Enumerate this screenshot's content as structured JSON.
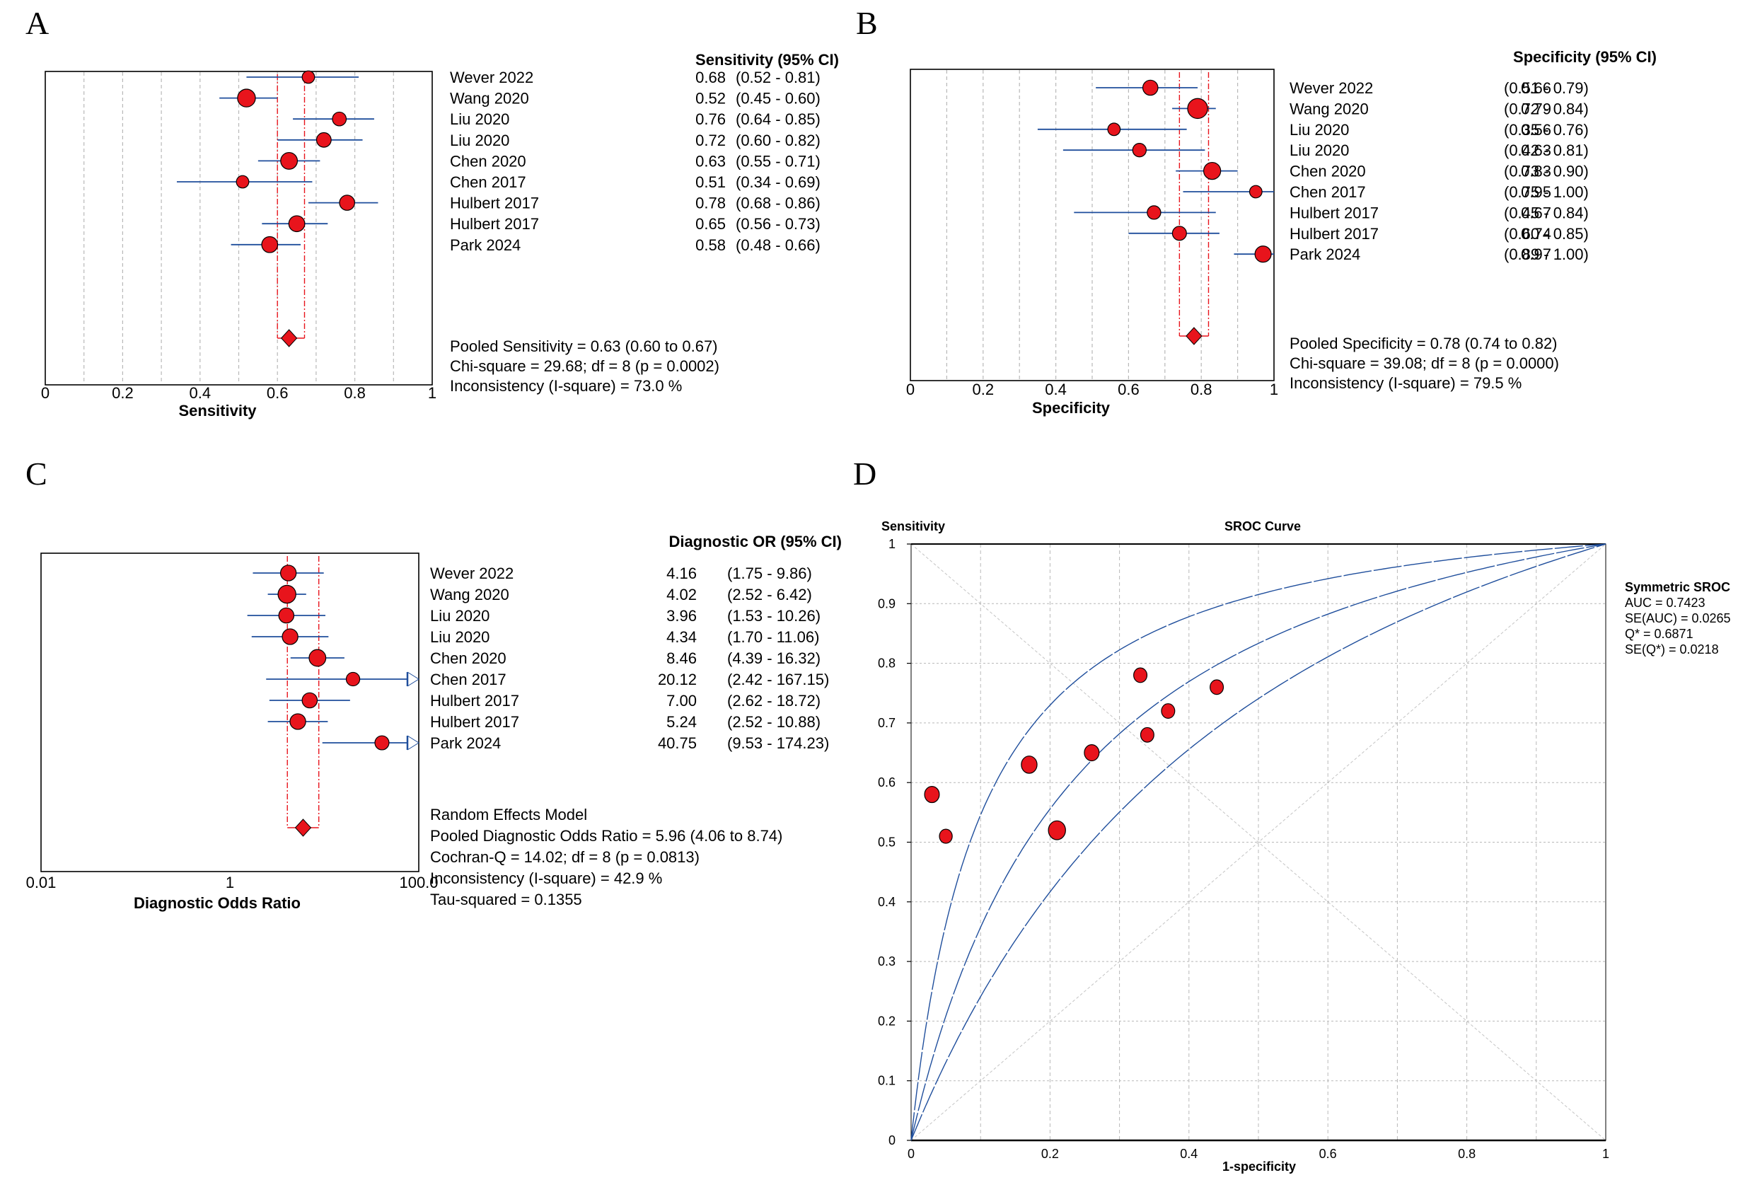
{
  "chart_data": [
    {
      "panel": "A",
      "type": "forest",
      "xlabel": "Sensitivity",
      "column_header": "Sensitivity (95% CI)",
      "xlim": [
        0,
        1
      ],
      "ticks": [
        "0",
        "0.2",
        "0.4",
        "0.6",
        "0.8",
        "1"
      ],
      "tick_values": [
        0,
        0.2,
        0.4,
        0.6,
        0.8,
        1
      ],
      "grid_values": [
        0.1,
        0.2,
        0.3,
        0.4,
        0.5,
        0.6,
        0.7,
        0.8,
        0.9
      ],
      "studies": [
        {
          "name": "Wever 2022",
          "est": 0.68,
          "lo": 0.52,
          "hi": 0.81,
          "value": "0.68",
          "ci": "(0.52 - 0.81)",
          "weight": 2
        },
        {
          "name": "Wang 2020",
          "est": 0.52,
          "lo": 0.45,
          "hi": 0.6,
          "value": "0.52",
          "ci": "(0.45 - 0.60)",
          "weight": 4
        },
        {
          "name": "Liu 2020",
          "est": 0.76,
          "lo": 0.64,
          "hi": 0.85,
          "value": "0.76",
          "ci": "(0.64 - 0.85)",
          "weight": 2.5
        },
        {
          "name": "Liu 2020",
          "est": 0.72,
          "lo": 0.6,
          "hi": 0.82,
          "value": "0.72",
          "ci": "(0.60 - 0.82)",
          "weight": 2.8
        },
        {
          "name": "Chen 2020",
          "est": 0.63,
          "lo": 0.55,
          "hi": 0.71,
          "value": "0.63",
          "ci": "(0.55 - 0.71)",
          "weight": 3.6
        },
        {
          "name": "Chen 2017",
          "est": 0.51,
          "lo": 0.34,
          "hi": 0.69,
          "value": "0.51",
          "ci": "(0.34 - 0.69)",
          "weight": 2
        },
        {
          "name": "Hulbert 2017",
          "est": 0.78,
          "lo": 0.68,
          "hi": 0.86,
          "value": "0.78",
          "ci": "(0.68 - 0.86)",
          "weight": 3
        },
        {
          "name": "Hulbert 2017",
          "est": 0.65,
          "lo": 0.56,
          "hi": 0.73,
          "value": "0.65",
          "ci": "(0.56 - 0.73)",
          "weight": 3.3
        },
        {
          "name": "Park 2024",
          "est": 0.58,
          "lo": 0.48,
          "hi": 0.66,
          "value": "0.58",
          "ci": "(0.48 - 0.66)",
          "weight": 3.3
        }
      ],
      "pooled": {
        "est": 0.63,
        "lo": 0.6,
        "hi": 0.67
      },
      "summary": [
        "Pooled Sensitivity = 0.63 (0.60 to 0.67)",
        "Chi-square = 29.68; df =  8 (p = 0.0002)",
        "Inconsistency (I-square) = 73.0 %"
      ]
    },
    {
      "panel": "B",
      "type": "forest",
      "xlabel": "Specificity",
      "column_header": "Specificity (95% CI)",
      "xlim": [
        0,
        1
      ],
      "ticks": [
        "0",
        "0.2",
        "0.4",
        "0.6",
        "0.8",
        "1"
      ],
      "tick_values": [
        0,
        0.2,
        0.4,
        0.6,
        0.8,
        1
      ],
      "grid_values": [
        0.1,
        0.2,
        0.3,
        0.4,
        0.5,
        0.6,
        0.7,
        0.8,
        0.9
      ],
      "studies": [
        {
          "name": "Wever 2022",
          "est": 0.66,
          "lo": 0.51,
          "hi": 0.79,
          "value": "0.66",
          "ci": "(0.51 - 0.79)",
          "weight": 3
        },
        {
          "name": "Wang 2020",
          "est": 0.79,
          "lo": 0.72,
          "hi": 0.84,
          "value": "0.79",
          "ci": "(0.72 - 0.84)",
          "weight": 4.8
        },
        {
          "name": "Liu 2020",
          "est": 0.56,
          "lo": 0.35,
          "hi": 0.76,
          "value": "0.56",
          "ci": "(0.35 - 0.76)",
          "weight": 2
        },
        {
          "name": "Liu 2020",
          "est": 0.63,
          "lo": 0.42,
          "hi": 0.81,
          "value": "0.63",
          "ci": "(0.42 - 0.81)",
          "weight": 2.4
        },
        {
          "name": "Chen 2020",
          "est": 0.83,
          "lo": 0.73,
          "hi": 0.9,
          "value": "0.83",
          "ci": "(0.73 - 0.90)",
          "weight": 3.7
        },
        {
          "name": "Chen 2017",
          "est": 0.95,
          "lo": 0.75,
          "hi": 1.0,
          "value": "0.95",
          "ci": "(0.75 - 1.00)",
          "weight": 2
        },
        {
          "name": "Hulbert 2017",
          "est": 0.67,
          "lo": 0.45,
          "hi": 0.84,
          "value": "0.67",
          "ci": "(0.45 - 0.84)",
          "weight": 2.4
        },
        {
          "name": "Hulbert 2017",
          "est": 0.74,
          "lo": 0.6,
          "hi": 0.85,
          "value": "0.74",
          "ci": "(0.60 - 0.85)",
          "weight": 2.6
        },
        {
          "name": "Park 2024",
          "est": 0.97,
          "lo": 0.89,
          "hi": 1.0,
          "value": "0.97",
          "ci": "(0.89 - 1.00)",
          "weight": 3.4
        }
      ],
      "pooled": {
        "est": 0.78,
        "lo": 0.74,
        "hi": 0.82
      },
      "summary": [
        "Pooled Specificity = 0.78 (0.74 to 0.82)",
        "Chi-square = 39.08; df =  8 (p = 0.0000)",
        "Inconsistency (I-square) = 79.5 %"
      ]
    },
    {
      "panel": "C",
      "type": "forest",
      "scale": "log",
      "xlabel": "Diagnostic Odds Ratio",
      "column_header": "Diagnostic OR (95% CI)",
      "xlim": [
        0.01,
        100
      ],
      "ticks": [
        "0.01",
        "1",
        "100.0"
      ],
      "tick_values": [
        0.01,
        1,
        100
      ],
      "studies": [
        {
          "name": "Wever 2022",
          "est": 4.16,
          "lo": 1.75,
          "hi": 9.86,
          "value": "4.16",
          "ci": "(1.75 - 9.86)",
          "weight": 3.2
        },
        {
          "name": "Wang 2020",
          "est": 4.02,
          "lo": 2.52,
          "hi": 6.42,
          "value": "4.02",
          "ci": "(2.52 - 6.42)",
          "weight": 4
        },
        {
          "name": "Liu 2020",
          "est": 3.96,
          "lo": 1.53,
          "hi": 10.26,
          "value": "3.96",
          "ci": "(1.53 - 10.26)",
          "weight": 3
        },
        {
          "name": "Liu 2020",
          "est": 4.34,
          "lo": 1.7,
          "hi": 11.06,
          "value": "4.34",
          "ci": "(1.70 - 11.06)",
          "weight": 3.2
        },
        {
          "name": "Chen 2020",
          "est": 8.46,
          "lo": 4.39,
          "hi": 16.32,
          "value": "8.46",
          "ci": "(4.39 - 16.32)",
          "weight": 3.6
        },
        {
          "name": "Chen 2017",
          "est": 20.12,
          "lo": 2.42,
          "hi": 167.15,
          "value": "20.12",
          "ci": "(2.42 - 167.15)",
          "weight": 2.4,
          "arrow_right": true
        },
        {
          "name": "Hulbert 2017",
          "est": 7.0,
          "lo": 2.62,
          "hi": 18.72,
          "value": "7.00",
          "ci": "(2.62 - 18.72)",
          "weight": 3
        },
        {
          "name": "Hulbert 2017",
          "est": 5.24,
          "lo": 2.52,
          "hi": 10.88,
          "value": "5.24",
          "ci": "(2.52 - 10.88)",
          "weight": 3.2
        },
        {
          "name": "Park 2024",
          "est": 40.75,
          "lo": 9.53,
          "hi": 174.23,
          "value": "40.75",
          "ci": "(9.53 - 174.23)",
          "weight": 2.6,
          "arrow_right": true
        }
      ],
      "pooled": {
        "est": 5.96,
        "lo": 4.06,
        "hi": 8.74
      },
      "summary": [
        "Random Effects Model",
        "Pooled Diagnostic Odds Ratio = 5.96 (4.06 to 8.74)",
        "Cochran-Q = 14.02; df =  8 (p = 0.0813)",
        "Inconsistency (I-square) = 42.9 %",
        "Tau-squared = 0.1355"
      ]
    },
    {
      "panel": "D",
      "type": "scatter",
      "title": "SROC Curve",
      "xlabel": "1-specificity",
      "ylabel": "Sensitivity",
      "xlim": [
        0,
        1
      ],
      "ylim": [
        0,
        1
      ],
      "xticks": [
        "0",
        "0.2",
        "0.4",
        "0.6",
        "0.8",
        "1"
      ],
      "xtick_values": [
        0,
        0.2,
        0.4,
        0.6,
        0.8,
        1
      ],
      "yticks": [
        "0",
        "0.1",
        "0.2",
        "0.3",
        "0.4",
        "0.5",
        "0.6",
        "0.7",
        "0.8",
        "0.9",
        "1"
      ],
      "ytick_values": [
        0,
        0.1,
        0.2,
        0.3,
        0.4,
        0.5,
        0.6,
        0.7,
        0.8,
        0.9,
        1
      ],
      "grid": true,
      "points": [
        {
          "x": 0.34,
          "y": 0.68,
          "weight": 2
        },
        {
          "x": 0.21,
          "y": 0.52,
          "weight": 3.6
        },
        {
          "x": 0.44,
          "y": 0.76,
          "weight": 2
        },
        {
          "x": 0.37,
          "y": 0.72,
          "weight": 2
        },
        {
          "x": 0.17,
          "y": 0.63,
          "weight": 3
        },
        {
          "x": 0.05,
          "y": 0.51,
          "weight": 1.8
        },
        {
          "x": 0.33,
          "y": 0.78,
          "weight": 2
        },
        {
          "x": 0.26,
          "y": 0.65,
          "weight": 2.6
        },
        {
          "x": 0.03,
          "y": 0.58,
          "weight": 2.6
        }
      ],
      "curves": [
        {
          "name": "upper CI",
          "log_dor": 2.38
        },
        {
          "name": "SROC",
          "log_dor": 1.61
        },
        {
          "name": "lower CI",
          "log_dor": 1.05
        }
      ],
      "legend_position": "right",
      "legend": {
        "title": "Symmetric SROC",
        "lines": [
          "AUC = 0.7423",
          "SE(AUC) = 0.0265",
          "Q* = 0.6871",
          "SE(Q*) = 0.0218"
        ]
      }
    }
  ],
  "panel_labels": [
    "A",
    "B",
    "C",
    "D"
  ],
  "colors": {
    "marker_fill": "#e8141c",
    "ci_line": "#1f4e9c",
    "pooled_line": "#e8141c",
    "grid": "#b8b8b8"
  }
}
